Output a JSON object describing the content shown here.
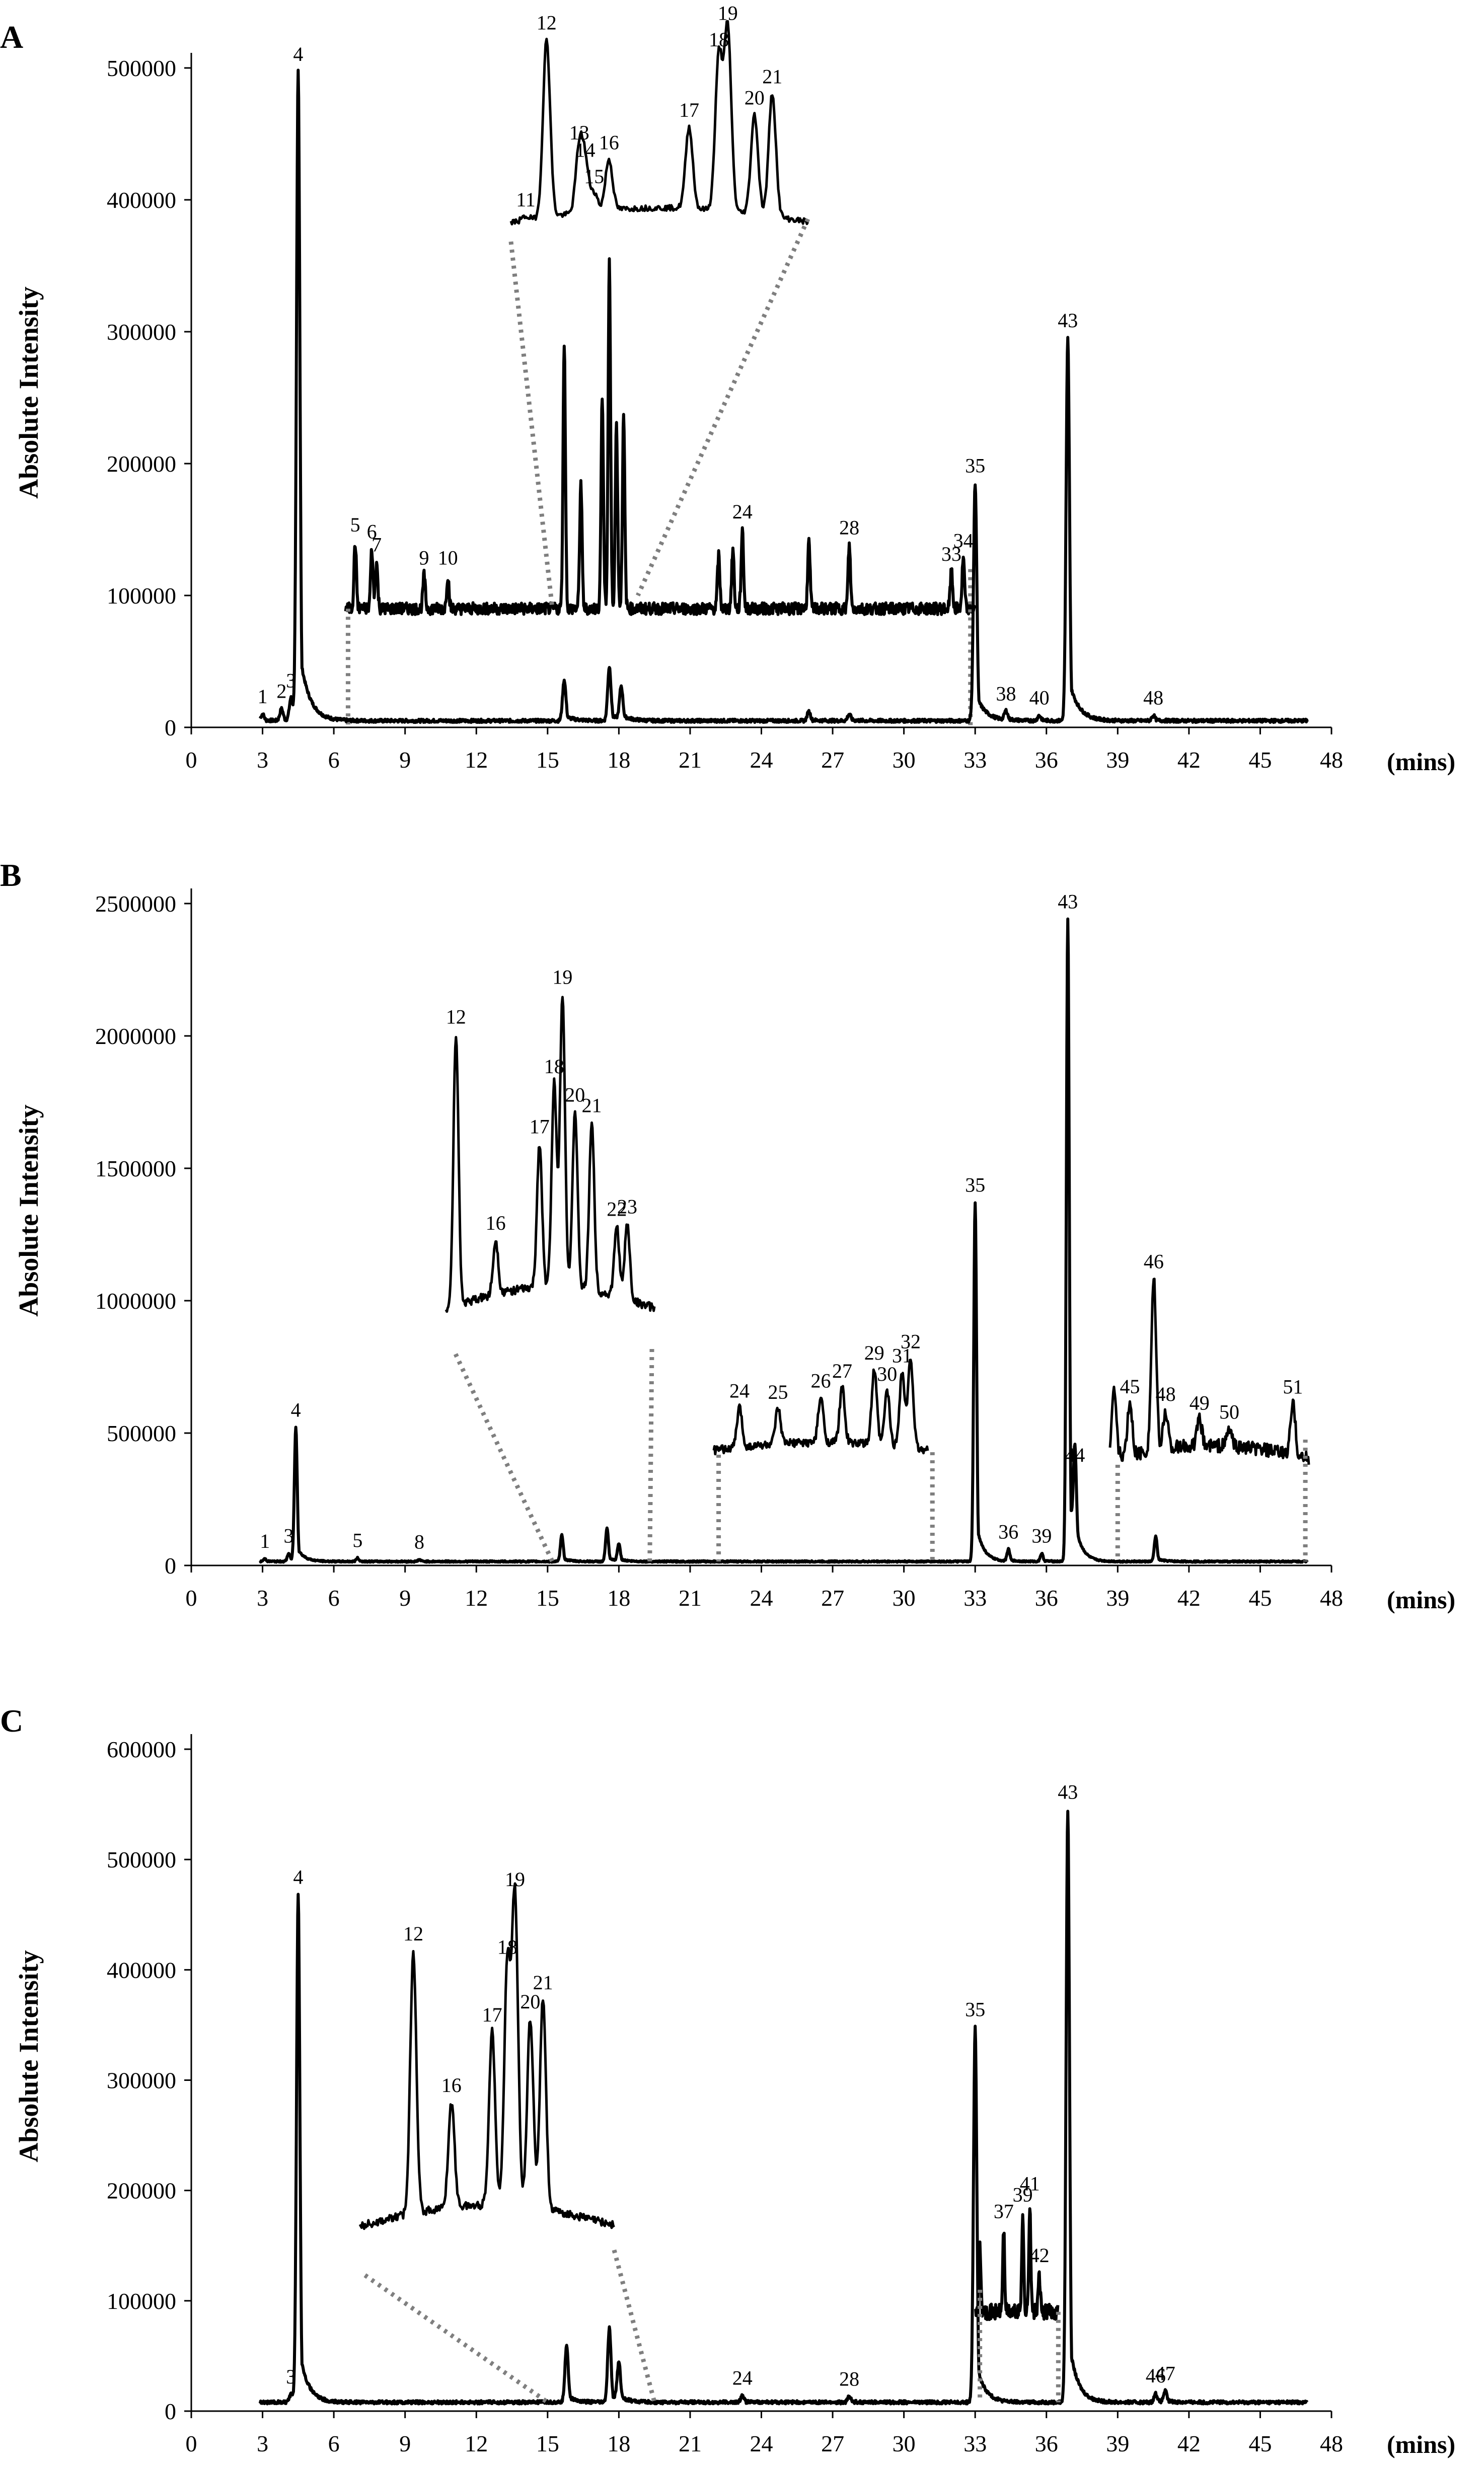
{
  "x_unit": "(mins)",
  "colors": {
    "trace": "#000000",
    "connector": "#7f7f7f",
    "axis": "#000000"
  },
  "chart_data": [
    {
      "type": "line",
      "panel": "A",
      "ylabel": "Absolute Intensity",
      "xlabel": "(mins)",
      "xlim": [
        0,
        48
      ],
      "ylim": [
        0,
        500000
      ],
      "x_ticks": [
        "0",
        "3",
        "6",
        "9",
        "12",
        "15",
        "18",
        "21",
        "24",
        "27",
        "30",
        "33",
        "36",
        "39",
        "42",
        "45",
        "48"
      ],
      "y_ticks": [
        "0",
        "100000",
        "200000",
        "300000",
        "400000",
        "500000"
      ],
      "series": [
        {
          "name": "main",
          "baseline": 5000,
          "peaks": [
            {
              "label": "1",
              "x": 3.0,
              "y": 10000
            },
            {
              "label": "2",
              "x": 3.8,
              "y": 14000
            },
            {
              "label": "3",
              "x": 4.2,
              "y": 22000
            },
            {
              "label": "4",
              "x": 4.5,
              "y": 497000
            },
            {
              "label": "",
              "x": 15.7,
              "y": 36000
            },
            {
              "label": "",
              "x": 17.6,
              "y": 46000
            },
            {
              "label": "",
              "x": 18.1,
              "y": 30000
            },
            {
              "label": "",
              "x": 26.0,
              "y": 12000
            },
            {
              "label": "",
              "x": 27.7,
              "y": 10000
            },
            {
              "label": "35",
              "x": 33.0,
              "y": 185000
            },
            {
              "label": "38",
              "x": 34.3,
              "y": 12000
            },
            {
              "label": "40",
              "x": 35.7,
              "y": 9000
            },
            {
              "label": "43",
              "x": 36.9,
              "y": 295000
            },
            {
              "label": "48",
              "x": 40.5,
              "y": 9000
            }
          ]
        }
      ],
      "insets": [
        {
          "name": "expanded 6.5–33 min",
          "x_range": [
            6.5,
            33.0
          ],
          "baseline": 90000,
          "peaks": [
            {
              "label": "5",
              "x": 6.9,
              "y": 140000
            },
            {
              "label": "6",
              "x": 7.6,
              "y": 135000
            },
            {
              "label": "7",
              "x": 7.8,
              "y": 125000
            },
            {
              "label": "9",
              "x": 9.8,
              "y": 115000
            },
            {
              "label": "10",
              "x": 10.8,
              "y": 115000
            },
            {
              "label": "",
              "x": 15.7,
              "y": 292000
            },
            {
              "label": "",
              "x": 16.4,
              "y": 185000
            },
            {
              "label": "",
              "x": 17.3,
              "y": 250000
            },
            {
              "label": "",
              "x": 17.6,
              "y": 355000
            },
            {
              "label": "",
              "x": 17.9,
              "y": 230000
            },
            {
              "label": "",
              "x": 18.2,
              "y": 235000
            },
            {
              "label": "24",
              "x": 23.2,
              "y": 150000
            },
            {
              "label": "",
              "x": 22.2,
              "y": 130000
            },
            {
              "label": "",
              "x": 22.8,
              "y": 135000
            },
            {
              "label": "",
              "x": 26.0,
              "y": 140000
            },
            {
              "label": "28",
              "x": 27.7,
              "y": 138000
            },
            {
              "label": "33",
              "x": 32.0,
              "y": 118000
            },
            {
              "label": "34",
              "x": 32.5,
              "y": 128000
            }
          ]
        },
        {
          "name": "zoom 15–19.5 min",
          "peaks": [
            {
              "label": "11",
              "x": 0.05,
              "y": 0.02
            },
            {
              "label": "12",
              "x": 0.12,
              "y": 0.98
            },
            {
              "label": "13",
              "x": 0.23,
              "y": 0.35
            },
            {
              "label": "14",
              "x": 0.25,
              "y": 0.25
            },
            {
              "label": "15",
              "x": 0.28,
              "y": 0.1
            },
            {
              "label": "16",
              "x": 0.33,
              "y": 0.28
            },
            {
              "label": "17",
              "x": 0.6,
              "y": 0.45
            },
            {
              "label": "18",
              "x": 0.7,
              "y": 0.85
            },
            {
              "label": "19",
              "x": 0.73,
              "y": 1.0
            },
            {
              "label": "20",
              "x": 0.82,
              "y": 0.55
            },
            {
              "label": "21",
              "x": 0.88,
              "y": 0.68
            }
          ]
        }
      ]
    },
    {
      "type": "line",
      "panel": "B",
      "ylabel": "Absolute Intensity",
      "xlabel": "(mins)",
      "xlim": [
        0,
        48
      ],
      "ylim": [
        0,
        2500000
      ],
      "x_ticks": [
        "0",
        "3",
        "6",
        "9",
        "12",
        "15",
        "18",
        "21",
        "24",
        "27",
        "30",
        "33",
        "36",
        "39",
        "42",
        "45",
        "48"
      ],
      "y_ticks": [
        "0",
        "500000",
        "1000000",
        "1500000",
        "2000000",
        "2500000"
      ],
      "series": [
        {
          "name": "main",
          "baseline": 15000,
          "peaks": [
            {
              "label": "1",
              "x": 3.1,
              "y": 25000
            },
            {
              "label": "3",
              "x": 4.1,
              "y": 45000
            },
            {
              "label": "4",
              "x": 4.4,
              "y": 520000
            },
            {
              "label": "5",
              "x": 7.0,
              "y": 28000
            },
            {
              "label": "8",
              "x": 9.6,
              "y": 22000
            },
            {
              "label": "",
              "x": 15.6,
              "y": 115000
            },
            {
              "label": "",
              "x": 17.5,
              "y": 140000
            },
            {
              "label": "",
              "x": 18.0,
              "y": 80000
            },
            {
              "label": "35",
              "x": 33.0,
              "y": 1370000
            },
            {
              "label": "36",
              "x": 34.4,
              "y": 60000
            },
            {
              "label": "39",
              "x": 35.8,
              "y": 45000
            },
            {
              "label": "43",
              "x": 36.9,
              "y": 2440000
            },
            {
              "label": "44",
              "x": 37.2,
              "y": 350000
            },
            {
              "label": "",
              "x": 40.6,
              "y": 110000
            }
          ]
        }
      ],
      "insets": [
        {
          "name": "zoom 15–19.5 min",
          "peaks": [
            {
              "label": "12",
              "x": 0.05,
              "y": 1.0
            },
            {
              "label": "16",
              "x": 0.24,
              "y": 0.2
            },
            {
              "label": "17",
              "x": 0.45,
              "y": 0.53
            },
            {
              "label": "18",
              "x": 0.52,
              "y": 0.75
            },
            {
              "label": "19",
              "x": 0.56,
              "y": 1.08
            },
            {
              "label": "20",
              "x": 0.62,
              "y": 0.65
            },
            {
              "label": "21",
              "x": 0.7,
              "y": 0.62
            },
            {
              "label": "22",
              "x": 0.82,
              "y": 0.26
            },
            {
              "label": "23",
              "x": 0.87,
              "y": 0.28
            }
          ]
        },
        {
          "name": "zoom 22–31 min",
          "peaks": [
            {
              "label": "24",
              "x": 0.12,
              "y": 0.4
            },
            {
              "label": "25",
              "x": 0.3,
              "y": 0.35
            },
            {
              "label": "26",
              "x": 0.5,
              "y": 0.45
            },
            {
              "label": "27",
              "x": 0.6,
              "y": 0.55
            },
            {
              "label": "29",
              "x": 0.75,
              "y": 0.75
            },
            {
              "label": "30",
              "x": 0.81,
              "y": 0.55
            },
            {
              "label": "31",
              "x": 0.88,
              "y": 0.75
            },
            {
              "label": "32",
              "x": 0.92,
              "y": 0.9
            }
          ]
        },
        {
          "name": "zoom 39–47 min",
          "peaks": [
            {
              "label": "",
              "x": 0.02,
              "y": 0.4
            },
            {
              "label": "45",
              "x": 0.1,
              "y": 0.3
            },
            {
              "label": "46",
              "x": 0.22,
              "y": 1.0
            },
            {
              "label": "48",
              "x": 0.28,
              "y": 0.22
            },
            {
              "label": "49",
              "x": 0.45,
              "y": 0.15
            },
            {
              "label": "50",
              "x": 0.6,
              "y": 0.1
            },
            {
              "label": "51",
              "x": 0.92,
              "y": 0.3
            }
          ]
        }
      ]
    },
    {
      "type": "line",
      "panel": "C",
      "ylabel": "Absolute Intensity",
      "xlabel": "(mins)",
      "xlim": [
        0,
        48
      ],
      "ylim": [
        0,
        600000
      ],
      "x_ticks": [
        "0",
        "3",
        "6",
        "9",
        "12",
        "15",
        "18",
        "21",
        "24",
        "27",
        "30",
        "33",
        "36",
        "39",
        "42",
        "45",
        "48"
      ],
      "y_ticks": [
        "0",
        "100000",
        "200000",
        "300000",
        "400000",
        "500000",
        "600000"
      ],
      "series": [
        {
          "name": "main",
          "baseline": 8000,
          "peaks": [
            {
              "label": "3",
              "x": 4.2,
              "y": 15000
            },
            {
              "label": "4",
              "x": 4.5,
              "y": 468000
            },
            {
              "label": "",
              "x": 15.8,
              "y": 60000
            },
            {
              "label": "",
              "x": 17.6,
              "y": 75000
            },
            {
              "label": "",
              "x": 18.0,
              "y": 42000
            },
            {
              "label": "24",
              "x": 23.2,
              "y": 14000
            },
            {
              "label": "28",
              "x": 27.7,
              "y": 13000
            },
            {
              "label": "35",
              "x": 33.0,
              "y": 348000
            },
            {
              "label": "43",
              "x": 36.9,
              "y": 545000
            },
            {
              "label": "46",
              "x": 40.6,
              "y": 16000
            },
            {
              "label": "47",
              "x": 41.0,
              "y": 18000
            }
          ]
        }
      ],
      "insets": [
        {
          "name": "zoom 15–19.5 min",
          "peaks": [
            {
              "label": "12",
              "x": 0.21,
              "y": 1.0
            },
            {
              "label": "16",
              "x": 0.36,
              "y": 0.4
            },
            {
              "label": "17",
              "x": 0.52,
              "y": 0.66
            },
            {
              "label": "18",
              "x": 0.58,
              "y": 0.92
            },
            {
              "label": "19",
              "x": 0.61,
              "y": 1.18
            },
            {
              "label": "20",
              "x": 0.67,
              "y": 0.72
            },
            {
              "label": "21",
              "x": 0.72,
              "y": 0.8
            }
          ]
        },
        {
          "name": "expanded 33–36.5 min",
          "x_range": [
            33.0,
            36.5
          ],
          "baseline": 90000,
          "peaks": [
            {
              "label": "",
              "x": 33.2,
              "y": 150000
            },
            {
              "label": "37",
              "x": 34.2,
              "y": 165000
            },
            {
              "label": "39",
              "x": 35.0,
              "y": 180000
            },
            {
              "label": "41",
              "x": 35.3,
              "y": 190000
            },
            {
              "label": "42",
              "x": 35.7,
              "y": 125000
            }
          ]
        }
      ]
    }
  ]
}
